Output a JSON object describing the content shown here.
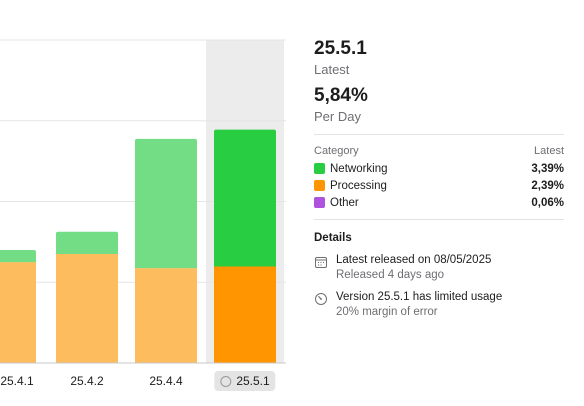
{
  "chart_data": {
    "type": "bar",
    "stacked": true,
    "categories": [
      "25.4.1",
      "25.4.2",
      "25.4.4",
      "25.5.1"
    ],
    "selected_category": "25.5.1",
    "series": [
      {
        "name": "Processing",
        "values": [
          2.5,
          2.7,
          2.35,
          2.39
        ]
      },
      {
        "name": "Networking",
        "values": [
          0.3,
          0.55,
          3.2,
          3.39
        ]
      }
    ],
    "ylim": [
      0,
      8
    ],
    "grid": true,
    "colors": {
      "processing_light": "#fdbc5e",
      "networking_light": "#72dd84",
      "processing_dark": "#ff9500",
      "networking_dark": "#28cd41",
      "highlight_band": "#ececec",
      "grid": "#e5e5e5"
    }
  },
  "summary": {
    "version": "25.5.1",
    "version_caption": "Latest",
    "percent": "5,84%",
    "percent_caption": "Per Day"
  },
  "categories_table": {
    "header_left": "Category",
    "header_right": "Latest",
    "rows": [
      {
        "label": "Networking",
        "value": "3,39%",
        "color": "#28cd41"
      },
      {
        "label": "Processing",
        "value": "2,39%",
        "color": "#ff9500"
      },
      {
        "label": "Other",
        "value": "0,06%",
        "color": "#af52de"
      }
    ]
  },
  "details": {
    "title": "Details",
    "items": [
      {
        "icon": "calendar-icon",
        "line1": "Latest released on 08/05/2025",
        "line2": "Released 4 days ago"
      },
      {
        "icon": "gauge-icon",
        "line1": "Version 25.5.1 has limited usage",
        "line2": "20% margin of error"
      }
    ]
  }
}
